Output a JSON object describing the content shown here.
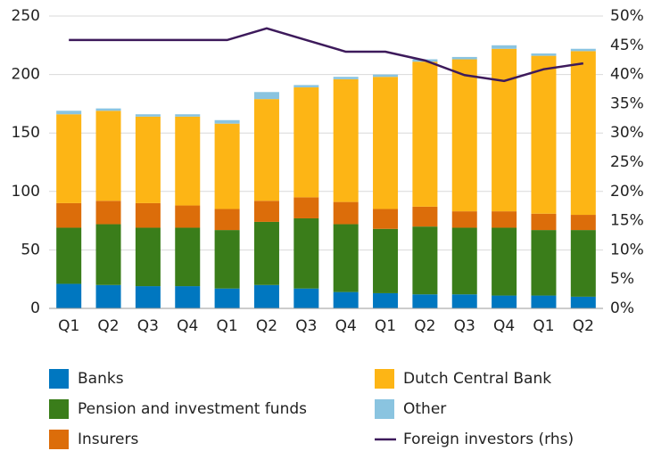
{
  "chart_data": {
    "type": "bar",
    "stacked": true,
    "categories": [
      "Q1",
      "Q2",
      "Q3",
      "Q4",
      "Q1",
      "Q2",
      "Q3",
      "Q4",
      "Q1",
      "Q2",
      "Q3",
      "Q4",
      "Q1",
      "Q2"
    ],
    "series": [
      {
        "name": "Banks",
        "color": "#0077c0",
        "values": [
          21,
          20,
          19,
          19,
          17,
          20,
          17,
          14,
          13,
          12,
          12,
          11,
          11,
          10
        ]
      },
      {
        "name": "Pension and investment funds",
        "color": "#3a7d1a",
        "values": [
          48,
          52,
          50,
          50,
          50,
          54,
          60,
          58,
          55,
          58,
          57,
          58,
          56,
          57
        ]
      },
      {
        "name": "Insurers",
        "color": "#dc6d0a",
        "values": [
          21,
          20,
          21,
          19,
          18,
          18,
          18,
          19,
          17,
          17,
          14,
          14,
          14,
          13
        ]
      },
      {
        "name": "Dutch Central Bank",
        "color": "#fdb515",
        "values": [
          76,
          77,
          74,
          76,
          73,
          87,
          94,
          105,
          113,
          124,
          130,
          139,
          135,
          140
        ]
      },
      {
        "name": "Other",
        "color": "#8ac4e0",
        "values": [
          3,
          2,
          2,
          2,
          3,
          6,
          2,
          2,
          2,
          2,
          2,
          3,
          2,
          2
        ]
      },
      {
        "name": "Foreign investors (rhs)",
        "color": "#3d1a5b",
        "type": "line",
        "axis": "y2",
        "values": [
          45.9,
          45.9,
          45.9,
          45.9,
          45.9,
          47.9,
          45.9,
          43.9,
          43.9,
          42.4,
          39.9,
          38.9,
          40.9,
          41.9
        ]
      }
    ],
    "ylim": [
      0,
      250
    ],
    "yticks": [
      0,
      50,
      100,
      150,
      200,
      250
    ],
    "y2lim": [
      0,
      50
    ],
    "y2ticks": [
      {
        "value": 0,
        "label": "0%"
      },
      {
        "value": 5,
        "label": "5%"
      },
      {
        "value": 10,
        "label": "10%"
      },
      {
        "value": 15,
        "label": "15%"
      },
      {
        "value": 20,
        "label": "20%"
      },
      {
        "value": 25,
        "label": "25%"
      },
      {
        "value": 30,
        "label": "30%"
      },
      {
        "value": 35,
        "label": "35%"
      },
      {
        "value": 40,
        "label": "40%"
      },
      {
        "value": 45,
        "label": "45%"
      },
      {
        "value": 50,
        "label": "50%"
      }
    ],
    "grid": true
  }
}
